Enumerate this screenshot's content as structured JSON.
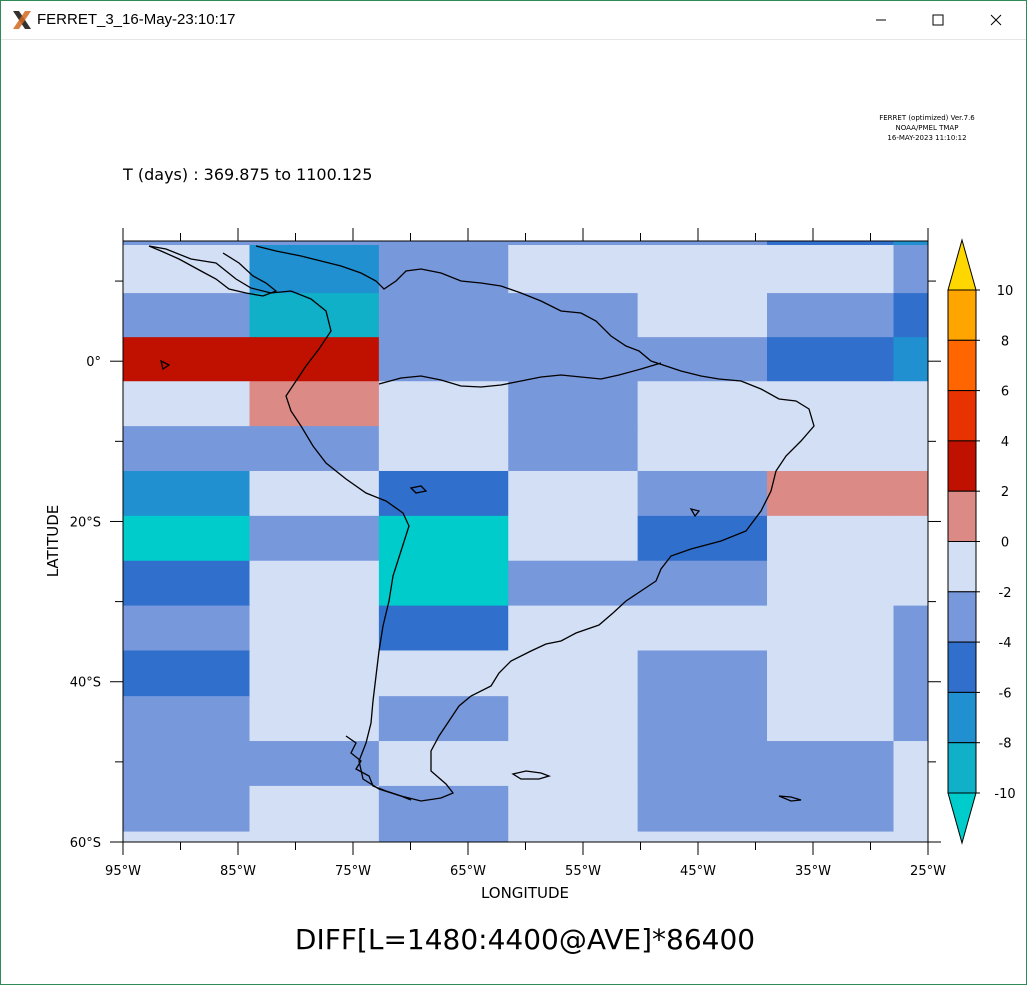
{
  "window": {
    "title": "FERRET_3_16-May-23:10:17",
    "icon": "x11-icon",
    "controls": [
      "minimize-icon",
      "maximize-icon",
      "close-icon"
    ]
  },
  "plot": {
    "time_range": "T (days) : 369.875 to 1100.125",
    "version_info": [
      "FERRET (optimized) Ver.7.6",
      "NOAA/PMEL TMAP",
      "16-MAY-2023 11:10:12"
    ],
    "title": "DIFF[L=1480:4400@AVE]*86400",
    "colors": {
      "cb10": "#ffd700",
      "cb8": "#ffa500",
      "cb6": "#ff6600",
      "cb4": "#e83200",
      "cb2": "#c01000",
      "cb0": "#dc8a86",
      "cbm2": "#d2dff5",
      "cbm4": "#7898dc",
      "cbm6": "#3070cc",
      "cbm8": "#2090d0",
      "cbm10": "#10b0c8",
      "cbm12": "#00cccc"
    }
  },
  "chart_data": {
    "type": "heatmap",
    "title": "DIFF[L=1480:4400@AVE]*86400",
    "xlabel": "LONGITUDE",
    "ylabel": "LATITUDE",
    "x_ticks": [
      "95°W",
      "85°W",
      "75°W",
      "65°W",
      "55°W",
      "45°W",
      "35°W",
      "25°W"
    ],
    "y_ticks": [
      "0°",
      "20°S",
      "40°S",
      "60°S"
    ],
    "xlim": [
      -95,
      -25
    ],
    "ylim": [
      -60,
      15
    ],
    "colorbar_levels": [
      "10",
      "8",
      "6",
      "4",
      "2",
      "0",
      "-2",
      "-4",
      "-6",
      "-8",
      "-10"
    ],
    "lon_edges": [
      -95,
      -84,
      -72.75,
      -61.5,
      -50.25,
      -39,
      -28,
      -25
    ],
    "lat_edges": [
      15,
      14.5,
      8.5,
      3,
      -2.5,
      -8.1,
      -13.7,
      -19.3,
      -24.9,
      -30.5,
      -36.1,
      -41.8,
      -47.4,
      -53,
      -58.7,
      -60
    ],
    "values": [
      [
        "m4",
        "m4",
        "m4",
        "m4",
        "m4",
        "m6",
        "m8"
      ],
      [
        "m2",
        "m8",
        "m4",
        "m2",
        "m2",
        "m2",
        "m4"
      ],
      [
        "m4",
        "m10",
        "m4",
        "m4",
        "m2",
        "m4",
        "m6"
      ],
      [
        "c2",
        "c2",
        "m4",
        "m4",
        "m4",
        "m6",
        "m8"
      ],
      [
        "m2",
        "c0",
        "m2",
        "m4",
        "m2",
        "m2",
        "m2"
      ],
      [
        "m4",
        "m4",
        "m2",
        "m4",
        "m2",
        "m2",
        "m2"
      ],
      [
        "m8",
        "m2",
        "m6",
        "m2",
        "m4",
        "c0",
        "c0"
      ],
      [
        "m12",
        "m4",
        "m12",
        "m2",
        "m6",
        "m2",
        "m2"
      ],
      [
        "m6",
        "m2",
        "m12",
        "m4",
        "m4",
        "m2",
        "m2"
      ],
      [
        "m4",
        "m2",
        "m6",
        "m2",
        "m2",
        "m2",
        "m4"
      ],
      [
        "m6",
        "m2",
        "m2",
        "m2",
        "m4",
        "m2",
        "m4"
      ],
      [
        "m4",
        "m2",
        "m4",
        "m2",
        "m4",
        "m2",
        "m4"
      ],
      [
        "m4",
        "m4",
        "m2",
        "m2",
        "m4",
        "m4",
        "m2"
      ],
      [
        "m4",
        "m2",
        "m4",
        "m2",
        "m4",
        "m4",
        "m2"
      ],
      [
        "m2",
        "m2",
        "m4",
        "m2",
        "m2",
        "m2",
        "m2"
      ]
    ]
  }
}
